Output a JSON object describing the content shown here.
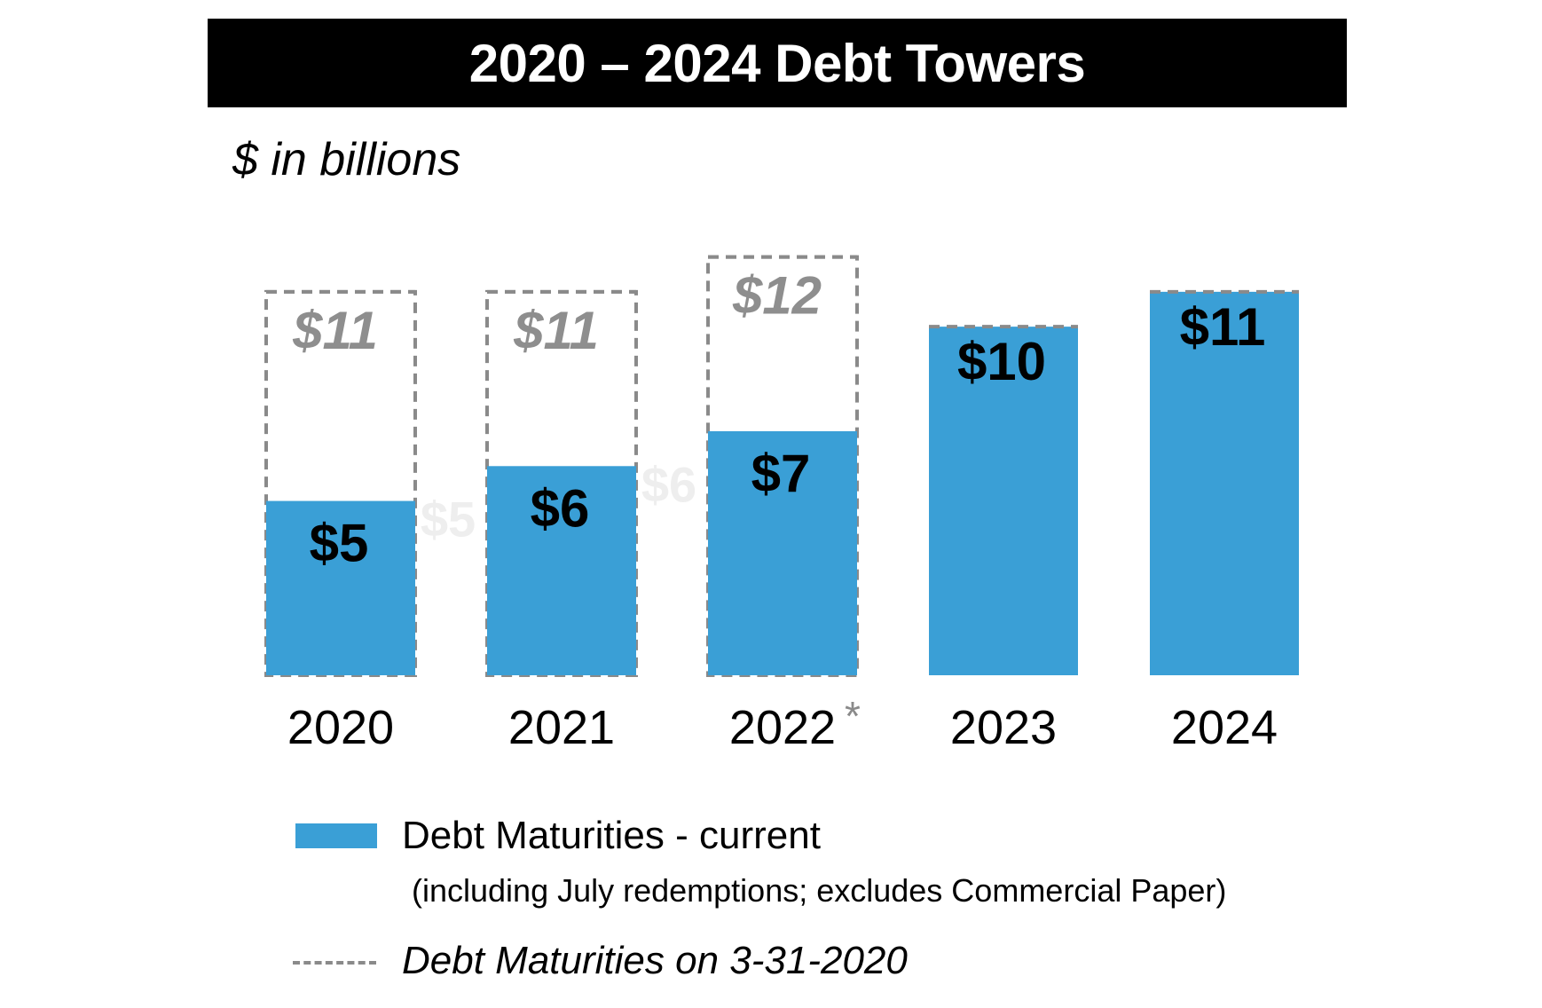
{
  "colors": {
    "current_bar": "#3a9fd6",
    "previous_outline": "#8a8a8a",
    "current_label": "#000000",
    "previous_label": "#8e8e8e",
    "faint_label": "#eeeeee",
    "title_bg": "#000000",
    "title_text": "#ffffff"
  },
  "chart_data": {
    "type": "bar",
    "title": "2020 – 2024 Debt Towers",
    "subtitle": "$ in billions",
    "xlabel": "",
    "ylabel": "",
    "ylim": [
      0,
      12.6
    ],
    "categories": [
      "2020",
      "2021",
      "2022",
      "2023",
      "2024"
    ],
    "category_marks": [
      "",
      "",
      "*",
      "",
      ""
    ],
    "series": [
      {
        "name": "Debt Maturities - current",
        "style": "solid",
        "values": [
          5,
          6,
          7,
          10,
          11
        ],
        "labels": [
          "$5",
          "$6",
          "$7",
          "$10",
          "$11"
        ]
      },
      {
        "name": "Debt Maturities on 3-31-2020",
        "style": "dashed-outline",
        "values": [
          11,
          11,
          12,
          10,
          11
        ],
        "labels": [
          "$11",
          "$11",
          "$12",
          "",
          ""
        ]
      }
    ],
    "faint_labels": [
      {
        "text": "$5",
        "value": 5
      },
      {
        "text": "$6",
        "value": 6
      }
    ],
    "legend": [
      {
        "label": "Debt Maturities - current",
        "note": "(including July redemptions; excludes Commercial Paper)",
        "style": "solid"
      },
      {
        "label": "Debt Maturities on 3-31-2020",
        "style": "dashed"
      }
    ],
    "grid": false,
    "legend_position": "bottom"
  }
}
